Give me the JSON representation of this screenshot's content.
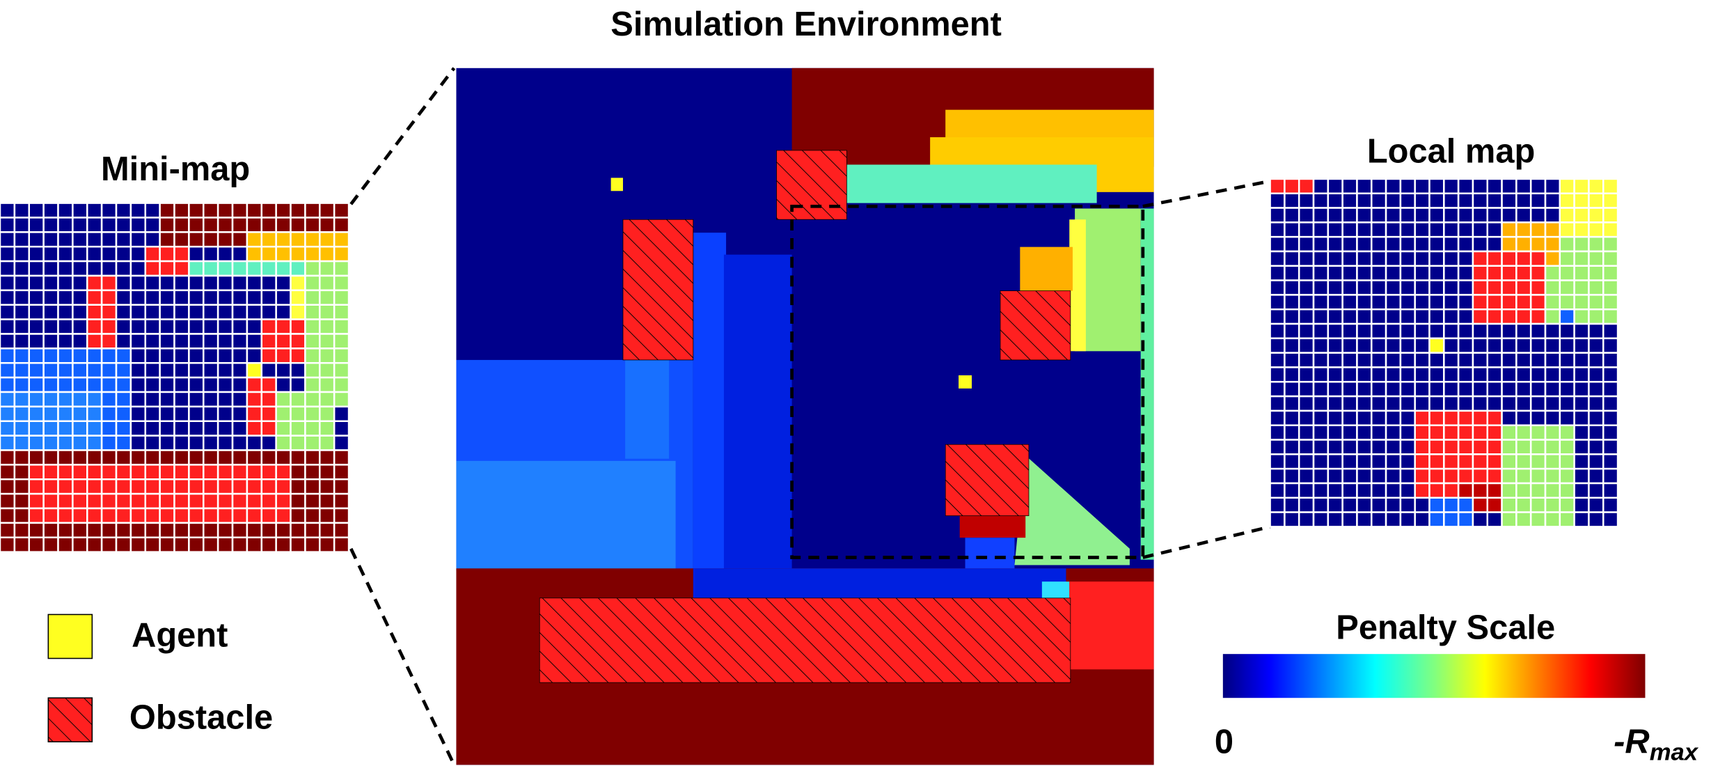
{
  "title": "Simulation Environment",
  "minimap": {
    "title": "Mini-map"
  },
  "localmap": {
    "title": "Local map"
  },
  "legend": {
    "items": [
      {
        "label": "Agent"
      },
      {
        "label": "Obstacle"
      }
    ]
  },
  "colorbar": {
    "title": "Penalty Scale",
    "min_label": "0",
    "max_label": {
      "text": "-R",
      "subscript": "max"
    }
  }
}
